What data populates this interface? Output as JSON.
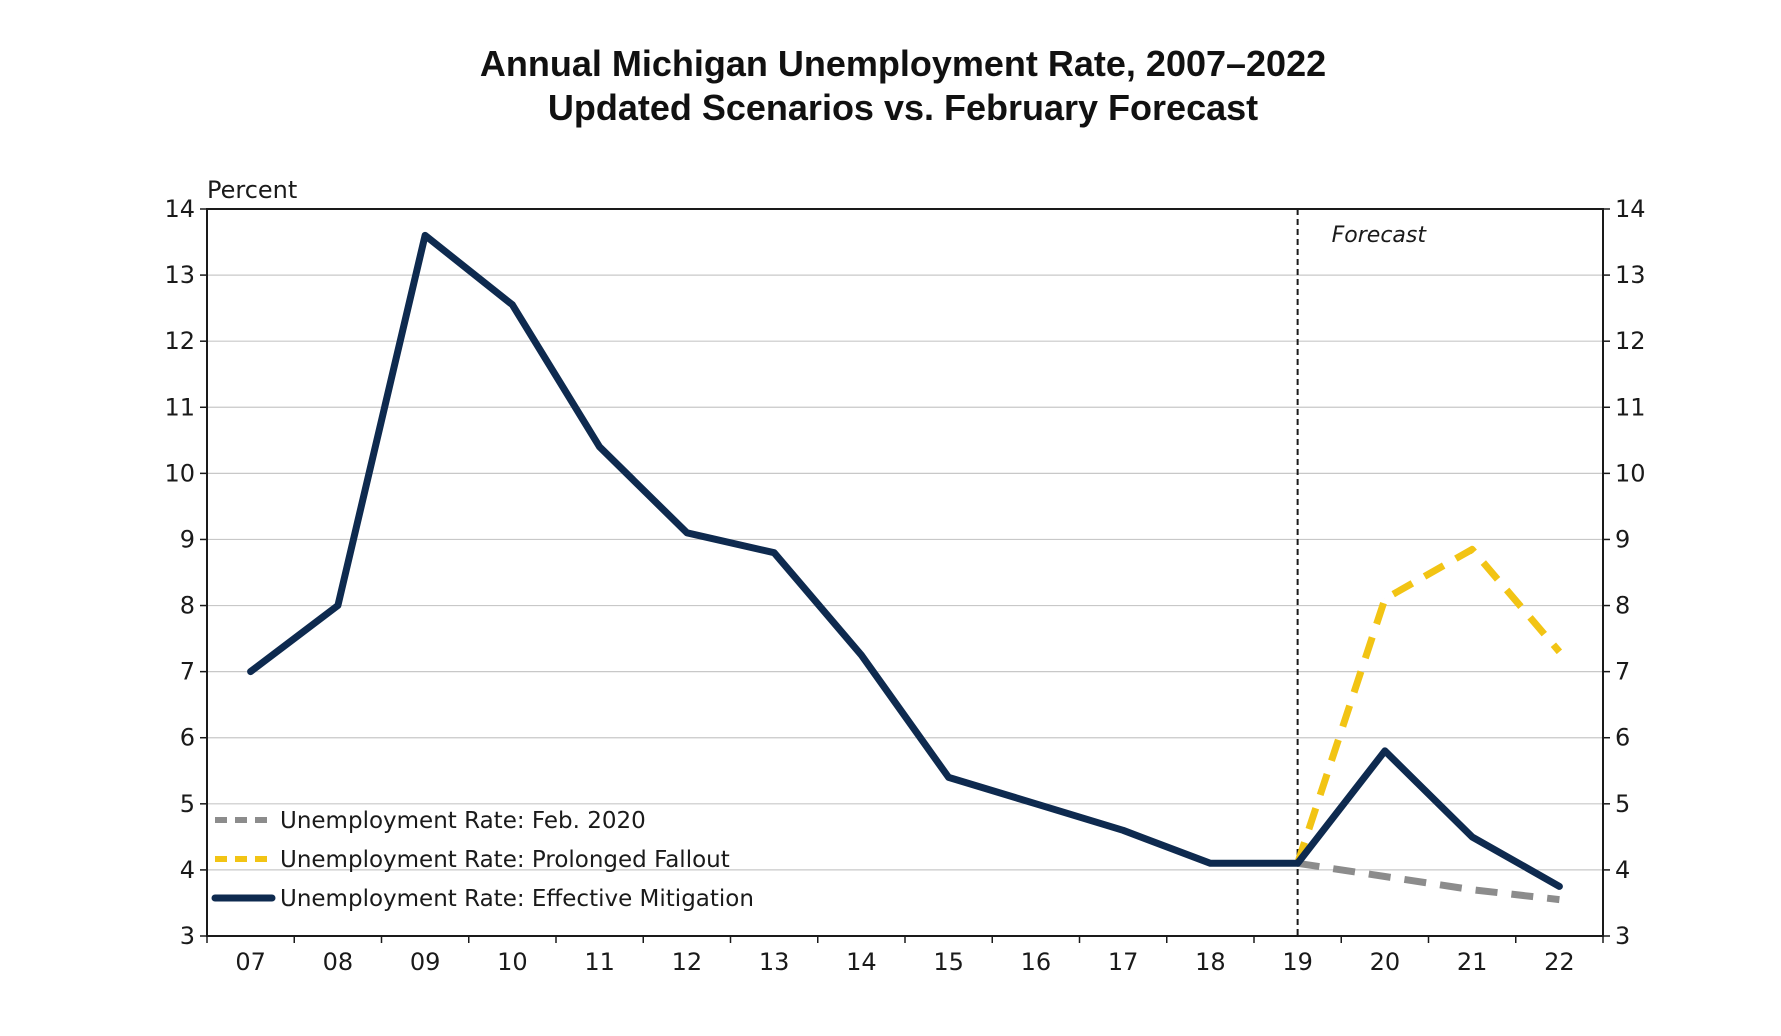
{
  "chart_data": {
    "type": "line",
    "title": "Annual Michigan Unemployment Rate, 2007–2022",
    "subtitle": "Updated Scenarios vs. February Forecast",
    "unit_label": "Percent",
    "annotation": "Forecast",
    "forecast_start": "19",
    "categories": [
      "07",
      "08",
      "09",
      "10",
      "11",
      "12",
      "13",
      "14",
      "15",
      "16",
      "17",
      "18",
      "19",
      "20",
      "21",
      "22"
    ],
    "ylim": [
      3,
      14
    ],
    "yticks": [
      3,
      4,
      5,
      6,
      7,
      8,
      9,
      10,
      11,
      12,
      13,
      14
    ],
    "y_axis_both_sides": true,
    "grid": "horizontal",
    "legend_position": "bottom-left",
    "series": [
      {
        "name": "Unemployment Rate: Feb. 2020",
        "color": "#8c8c8c",
        "style": "dashed",
        "x": [
          "19",
          "20",
          "21",
          "22"
        ],
        "values": [
          4.1,
          3.9,
          3.7,
          3.55
        ]
      },
      {
        "name": "Unemployment Rate: Prolonged Fallout",
        "color": "#f2c414",
        "style": "dashed",
        "x": [
          "19",
          "20",
          "21",
          "22"
        ],
        "values": [
          4.1,
          8.1,
          8.85,
          7.3
        ]
      },
      {
        "name": "Unemployment Rate: Effective Mitigation",
        "color": "#0e2a4f",
        "style": "solid",
        "x": [
          "07",
          "08",
          "09",
          "10",
          "11",
          "12",
          "13",
          "14",
          "15",
          "16",
          "17",
          "18",
          "19",
          "20",
          "21",
          "22"
        ],
        "values": [
          7.0,
          8.0,
          13.6,
          12.55,
          10.4,
          9.1,
          8.8,
          7.25,
          5.4,
          5.0,
          4.6,
          4.1,
          4.1,
          5.8,
          4.5,
          3.75
        ]
      }
    ]
  }
}
